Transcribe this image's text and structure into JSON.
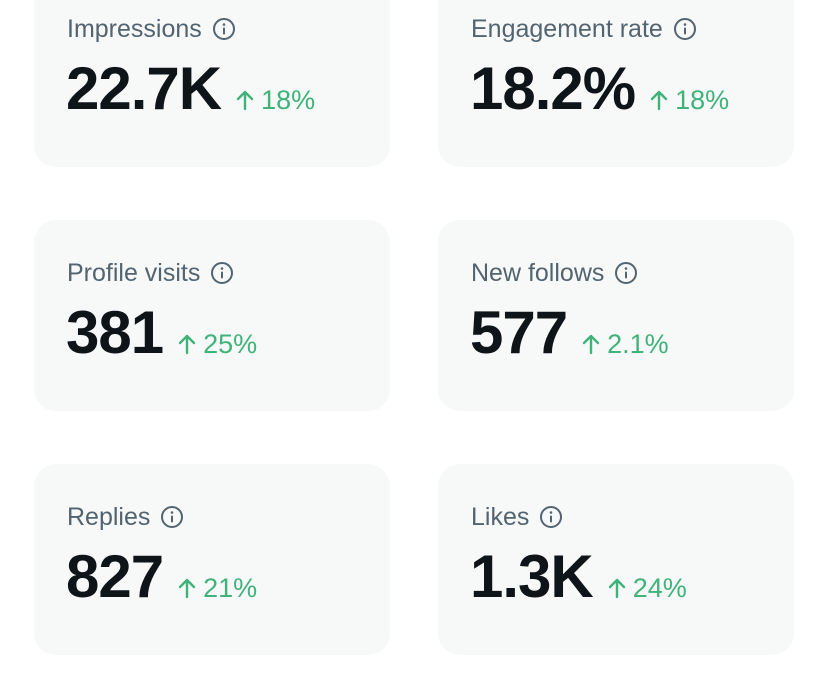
{
  "metrics": [
    {
      "label": "Impressions",
      "value": "22.7K",
      "change": "18%",
      "trend": "up"
    },
    {
      "label": "Engagement rate",
      "value": "18.2%",
      "change": "18%",
      "trend": "up"
    },
    {
      "label": "Profile visits",
      "value": "381",
      "change": "25%",
      "trend": "up"
    },
    {
      "label": "New follows",
      "value": "577",
      "change": "2.1%",
      "trend": "up"
    },
    {
      "label": "Replies",
      "value": "827",
      "change": "21%",
      "trend": "up"
    },
    {
      "label": "Likes",
      "value": "1.3K",
      "change": "24%",
      "trend": "up"
    }
  ],
  "icons": {
    "info": "info-circle-icon",
    "trend_up": "arrow-up-icon"
  },
  "colors": {
    "card_background": "#f7f8f8",
    "label": "#536471",
    "value": "#0f1419",
    "positive_change": "#3fb37a"
  }
}
